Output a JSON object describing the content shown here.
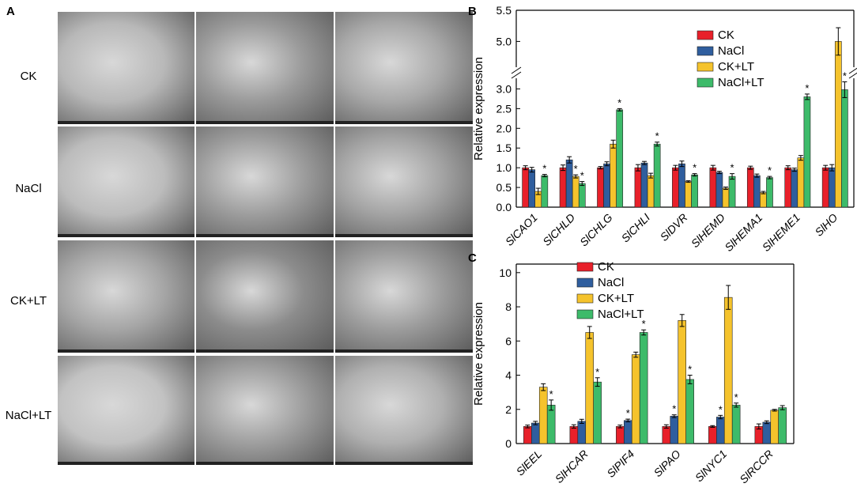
{
  "panels": {
    "a_letter": "A",
    "b_letter": "B",
    "c_letter": "C",
    "row_labels": [
      "CK",
      "NaCl",
      "CK+LT",
      "NaCl+LT"
    ]
  },
  "colors": {
    "CK": "#e8202a",
    "NaCl": "#2f5e9e",
    "CK+LT": "#f5c32c",
    "NaCl+LT": "#3dbb6a"
  },
  "chart_data": [
    {
      "type": "bar",
      "ylabel": "Relative expression",
      "yticks": [
        "0.0",
        "0.5",
        "1.0",
        "1.5",
        "2.0",
        "2.5",
        "3.0",
        "5.0",
        "5.5"
      ],
      "axis_break": [
        3.35,
        4.65
      ],
      "ylim": [
        0,
        5.5
      ],
      "legend_position": "top-right",
      "categories": [
        "SlCAO1",
        "SlCHLD",
        "SlCHLG",
        "SlCHLI",
        "SlDVR",
        "SlHEMD",
        "SlHEMA1",
        "SlHEME1",
        "SlHO"
      ],
      "series": [
        {
          "name": "CK",
          "values": [
            1.0,
            1.0,
            1.0,
            1.0,
            1.0,
            1.0,
            1.0,
            1.0,
            1.0
          ],
          "errors": [
            0.05,
            0.07,
            0.03,
            0.08,
            0.06,
            0.06,
            0.04,
            0.05,
            0.06
          ]
        },
        {
          "name": "NaCl",
          "values": [
            0.95,
            1.2,
            1.1,
            1.12,
            1.1,
            0.88,
            0.8,
            0.95,
            1.0
          ],
          "errors": [
            0.06,
            0.08,
            0.05,
            0.04,
            0.07,
            0.03,
            0.04,
            0.04,
            0.08
          ]
        },
        {
          "name": "CK+LT",
          "values": [
            0.4,
            0.78,
            1.6,
            0.8,
            0.65,
            0.48,
            0.37,
            1.25,
            5.0
          ],
          "errors": [
            0.08,
            0.04,
            0.1,
            0.06,
            0.02,
            0.03,
            0.03,
            0.06,
            0.22
          ]
        },
        {
          "name": "NaCl+LT",
          "values": [
            0.8,
            0.6,
            2.47,
            1.6,
            0.82,
            0.78,
            0.75,
            2.8,
            2.98
          ],
          "errors": [
            0.03,
            0.05,
            0.03,
            0.05,
            0.03,
            0.07,
            0.03,
            0.07,
            0.2
          ]
        }
      ],
      "asterisks": [
        {
          "category": 0,
          "series": 3
        },
        {
          "category": 1,
          "series": 2
        },
        {
          "category": 1,
          "series": 3
        },
        {
          "category": 2,
          "series": 3
        },
        {
          "category": 3,
          "series": 3
        },
        {
          "category": 4,
          "series": 3
        },
        {
          "category": 5,
          "series": 3
        },
        {
          "category": 6,
          "series": 3
        },
        {
          "category": 7,
          "series": 3
        },
        {
          "category": 8,
          "series": 3
        }
      ],
      "asterisk_label": "*"
    },
    {
      "type": "bar",
      "ylabel": "Relative expression",
      "yticks": [
        "0",
        "2",
        "4",
        "6",
        "8",
        "10"
      ],
      "ylim": [
        0,
        10.5
      ],
      "legend_position": "top-left",
      "categories": [
        "SlEEL",
        "SlHCAR",
        "SlPIF4",
        "SlPAO",
        "SlNYC1",
        "SlRCCR"
      ],
      "series": [
        {
          "name": "CK",
          "values": [
            1.0,
            1.0,
            1.0,
            1.0,
            1.0,
            1.0
          ],
          "errors": [
            0.08,
            0.1,
            0.08,
            0.1,
            0.05,
            0.15
          ]
        },
        {
          "name": "NaCl",
          "values": [
            1.2,
            1.3,
            1.35,
            1.6,
            1.55,
            1.25
          ],
          "errors": [
            0.1,
            0.12,
            0.08,
            0.08,
            0.1,
            0.08
          ]
        },
        {
          "name": "CK+LT",
          "values": [
            3.3,
            6.5,
            5.2,
            7.2,
            8.55,
            1.95
          ],
          "errors": [
            0.2,
            0.35,
            0.15,
            0.35,
            0.7,
            0.05
          ]
        },
        {
          "name": "NaCl+LT",
          "values": [
            2.25,
            3.6,
            6.5,
            3.75,
            2.25,
            2.1
          ],
          "errors": [
            0.3,
            0.25,
            0.15,
            0.25,
            0.12,
            0.12
          ]
        }
      ],
      "asterisks": [
        {
          "category": 0,
          "series": 3
        },
        {
          "category": 1,
          "series": 3
        },
        {
          "category": 2,
          "series": 1
        },
        {
          "category": 2,
          "series": 3
        },
        {
          "category": 3,
          "series": 1
        },
        {
          "category": 3,
          "series": 3
        },
        {
          "category": 4,
          "series": 1
        },
        {
          "category": 4,
          "series": 3
        }
      ],
      "asterisk_label": "*"
    }
  ]
}
